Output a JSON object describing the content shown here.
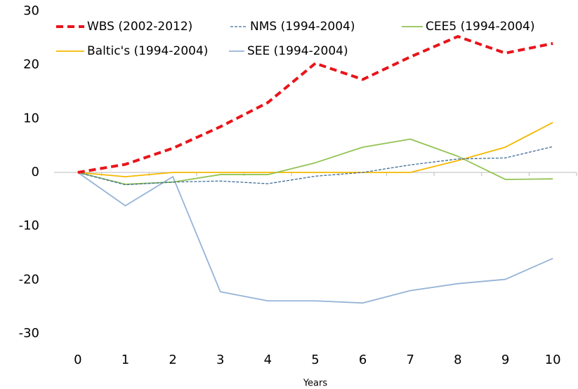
{
  "chart_data": {
    "type": "line",
    "x": [
      0,
      1,
      2,
      3,
      4,
      5,
      6,
      7,
      8,
      9,
      10
    ],
    "xlim": [
      -0.5,
      10.5
    ],
    "x_label": "Years",
    "ylim": [
      -30,
      30
    ],
    "yticks": [
      -30,
      -20,
      -10,
      0,
      10,
      20,
      30
    ],
    "legend": "top",
    "series": [
      {
        "name": "WBS (2002-2012)",
        "color": "#e8141a",
        "values": [
          0,
          1.5,
          4.5,
          8.5,
          13,
          20.3,
          17.3,
          21.5,
          25.3,
          22.2,
          24
        ]
      },
      {
        "name": "NMS (1994-2004)",
        "color": "#3d6d98",
        "values": [
          0,
          -2.3,
          -1.8,
          -1.6,
          -2.1,
          -0.7,
          0,
          1.4,
          2.5,
          2.7,
          4.8
        ]
      },
      {
        "name": "CEE5 (1994-2004)",
        "color": "#92c353",
        "values": [
          0,
          -2.2,
          -1.8,
          -0.4,
          -0.4,
          1.8,
          4.7,
          6.2,
          3,
          -1.3,
          -1.2
        ]
      },
      {
        "name": "Baltic's (1994-2004)",
        "color": "#f5b800",
        "values": [
          0,
          -0.8,
          0,
          0,
          0,
          0,
          0,
          0,
          2.2,
          4.7,
          9.3
        ]
      },
      {
        "name": "SEE (1994-2004)",
        "color": "#95b3d7",
        "values": [
          0,
          -6.2,
          -0.8,
          -22.2,
          -23.9,
          -23.9,
          -24.3,
          -22,
          -20.7,
          -19.9,
          -16
        ]
      }
    ]
  }
}
